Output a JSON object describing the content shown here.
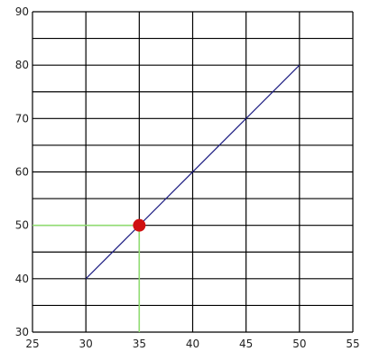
{
  "chart_data": {
    "type": "line",
    "xlim": [
      25,
      55
    ],
    "ylim": [
      30,
      90
    ],
    "x_ticks": [
      25,
      30,
      35,
      40,
      45,
      50,
      55
    ],
    "x_tick_labels": [
      "25",
      "30",
      "35",
      "40",
      "45",
      "50",
      "55"
    ],
    "y_ticks": [
      30,
      40,
      50,
      60,
      70,
      80,
      90
    ],
    "y_tick_labels": [
      "30",
      "40",
      "50",
      "60",
      "70",
      "80",
      "90"
    ],
    "x_minor_step": 5,
    "y_minor_step": 5,
    "grid": true,
    "series": [
      {
        "points": [
          [
            30,
            40
          ],
          [
            50,
            80
          ]
        ],
        "color": "#1a1a80"
      }
    ],
    "highlight_point": {
      "x": 35,
      "y": 50,
      "color": "#d01010",
      "guide_color": "#90e070"
    }
  }
}
